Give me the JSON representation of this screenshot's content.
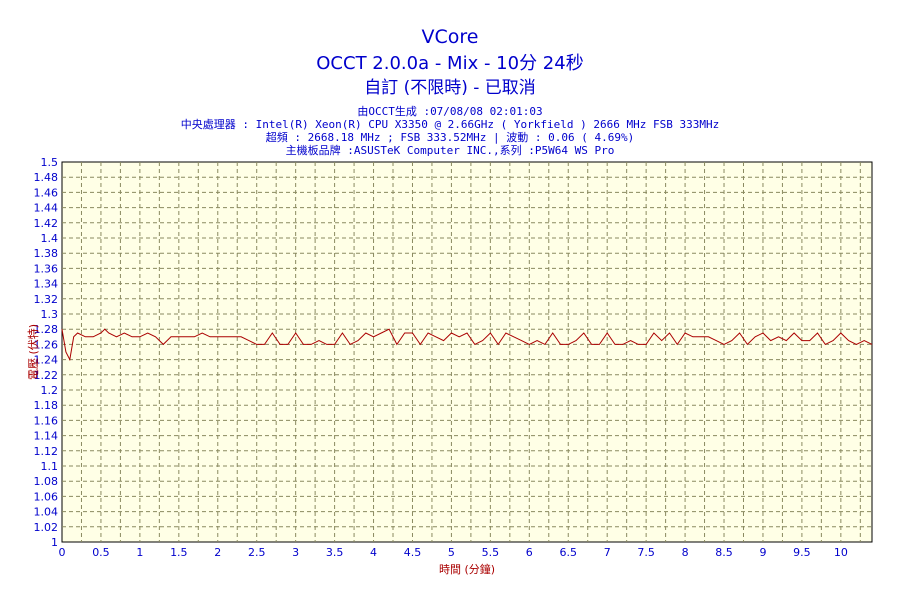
{
  "chart_data": {
    "type": "line",
    "title": "VCore",
    "subtitle": "OCCT 2.0.0a - Mix - 10分 24秒",
    "subtitle2": "自訂 (不限時) - 已取消",
    "info_lines": [
      "由OCCT生成 :07/08/08 02:01:03",
      "中央處理器 : Intel(R) Xeon(R) CPU X3350 @ 2.66GHz ( Yorkfield ) 2666 MHz FSB 333MHz",
      "超頻 : 2668.18 MHz ; FSB 333.52MHz | 波動 : 0.06 ( 4.69%)",
      "主機板品牌 :ASUSTeK Computer INC.,系列 :P5W64 WS Pro"
    ],
    "xlabel": "時間 (分鐘)",
    "ylabel": "電壓 (伏特)",
    "xlim": [
      0,
      10.4
    ],
    "ylim": [
      1,
      1.5
    ],
    "xticks": [
      "0",
      "0.5",
      "1",
      "1.5",
      "2",
      "2.5",
      "3",
      "3.5",
      "4",
      "4.5",
      "5",
      "5.5",
      "6",
      "6.5",
      "7",
      "7.5",
      "8",
      "8.5",
      "9",
      "9.5",
      "10"
    ],
    "yticks": [
      "1.5",
      "1.48",
      "1.46",
      "1.44",
      "1.42",
      "1.4",
      "1.38",
      "1.36",
      "1.34",
      "1.32",
      "1.3",
      "1.28",
      "1.26",
      "1.24",
      "1.22",
      "1.2",
      "1.18",
      "1.16",
      "1.14",
      "1.12",
      "1.1",
      "1.08",
      "1.06",
      "1.04",
      "1.02",
      "1"
    ],
    "grid": true,
    "colors": {
      "line": "#aa0000",
      "grid": "#8a8a60",
      "plot_bg": "#ffffe6",
      "text": "#0000cc"
    },
    "series": [
      {
        "values": [
          [
            0.0,
            1.28
          ],
          [
            0.05,
            1.25
          ],
          [
            0.1,
            1.24
          ],
          [
            0.15,
            1.27
          ],
          [
            0.2,
            1.275
          ],
          [
            0.3,
            1.27
          ],
          [
            0.4,
            1.27
          ],
          [
            0.5,
            1.275
          ],
          [
            0.55,
            1.28
          ],
          [
            0.6,
            1.275
          ],
          [
            0.7,
            1.27
          ],
          [
            0.8,
            1.275
          ],
          [
            0.9,
            1.27
          ],
          [
            1.0,
            1.27
          ],
          [
            1.1,
            1.275
          ],
          [
            1.2,
            1.27
          ],
          [
            1.3,
            1.26
          ],
          [
            1.4,
            1.27
          ],
          [
            1.5,
            1.27
          ],
          [
            1.6,
            1.27
          ],
          [
            1.7,
            1.27
          ],
          [
            1.8,
            1.275
          ],
          [
            1.9,
            1.27
          ],
          [
            2.0,
            1.27
          ],
          [
            2.1,
            1.27
          ],
          [
            2.2,
            1.27
          ],
          [
            2.3,
            1.27
          ],
          [
            2.4,
            1.265
          ],
          [
            2.5,
            1.26
          ],
          [
            2.6,
            1.26
          ],
          [
            2.7,
            1.275
          ],
          [
            2.8,
            1.26
          ],
          [
            2.9,
            1.26
          ],
          [
            3.0,
            1.275
          ],
          [
            3.1,
            1.26
          ],
          [
            3.2,
            1.26
          ],
          [
            3.3,
            1.265
          ],
          [
            3.4,
            1.26
          ],
          [
            3.5,
            1.26
          ],
          [
            3.6,
            1.275
          ],
          [
            3.7,
            1.26
          ],
          [
            3.8,
            1.265
          ],
          [
            3.9,
            1.275
          ],
          [
            4.0,
            1.27
          ],
          [
            4.1,
            1.275
          ],
          [
            4.2,
            1.28
          ],
          [
            4.3,
            1.26
          ],
          [
            4.4,
            1.275
          ],
          [
            4.5,
            1.275
          ],
          [
            4.6,
            1.26
          ],
          [
            4.7,
            1.275
          ],
          [
            4.8,
            1.27
          ],
          [
            4.9,
            1.265
          ],
          [
            5.0,
            1.275
          ],
          [
            5.1,
            1.27
          ],
          [
            5.2,
            1.275
          ],
          [
            5.3,
            1.26
          ],
          [
            5.4,
            1.265
          ],
          [
            5.5,
            1.275
          ],
          [
            5.6,
            1.26
          ],
          [
            5.7,
            1.275
          ],
          [
            5.8,
            1.27
          ],
          [
            5.9,
            1.265
          ],
          [
            6.0,
            1.26
          ],
          [
            6.1,
            1.265
          ],
          [
            6.2,
            1.26
          ],
          [
            6.3,
            1.275
          ],
          [
            6.4,
            1.26
          ],
          [
            6.5,
            1.26
          ],
          [
            6.6,
            1.265
          ],
          [
            6.7,
            1.275
          ],
          [
            6.8,
            1.26
          ],
          [
            6.9,
            1.26
          ],
          [
            7.0,
            1.275
          ],
          [
            7.1,
            1.26
          ],
          [
            7.2,
            1.26
          ],
          [
            7.3,
            1.265
          ],
          [
            7.4,
            1.26
          ],
          [
            7.5,
            1.26
          ],
          [
            7.6,
            1.275
          ],
          [
            7.7,
            1.265
          ],
          [
            7.8,
            1.275
          ],
          [
            7.9,
            1.26
          ],
          [
            8.0,
            1.275
          ],
          [
            8.1,
            1.27
          ],
          [
            8.2,
            1.27
          ],
          [
            8.3,
            1.27
          ],
          [
            8.4,
            1.265
          ],
          [
            8.5,
            1.26
          ],
          [
            8.6,
            1.265
          ],
          [
            8.7,
            1.275
          ],
          [
            8.8,
            1.26
          ],
          [
            8.9,
            1.27
          ],
          [
            9.0,
            1.275
          ],
          [
            9.1,
            1.265
          ],
          [
            9.2,
            1.27
          ],
          [
            9.3,
            1.265
          ],
          [
            9.4,
            1.275
          ],
          [
            9.5,
            1.265
          ],
          [
            9.6,
            1.265
          ],
          [
            9.7,
            1.275
          ],
          [
            9.8,
            1.26
          ],
          [
            9.9,
            1.265
          ],
          [
            10.0,
            1.275
          ],
          [
            10.1,
            1.265
          ],
          [
            10.2,
            1.26
          ],
          [
            10.3,
            1.265
          ],
          [
            10.4,
            1.26
          ]
        ]
      }
    ]
  }
}
